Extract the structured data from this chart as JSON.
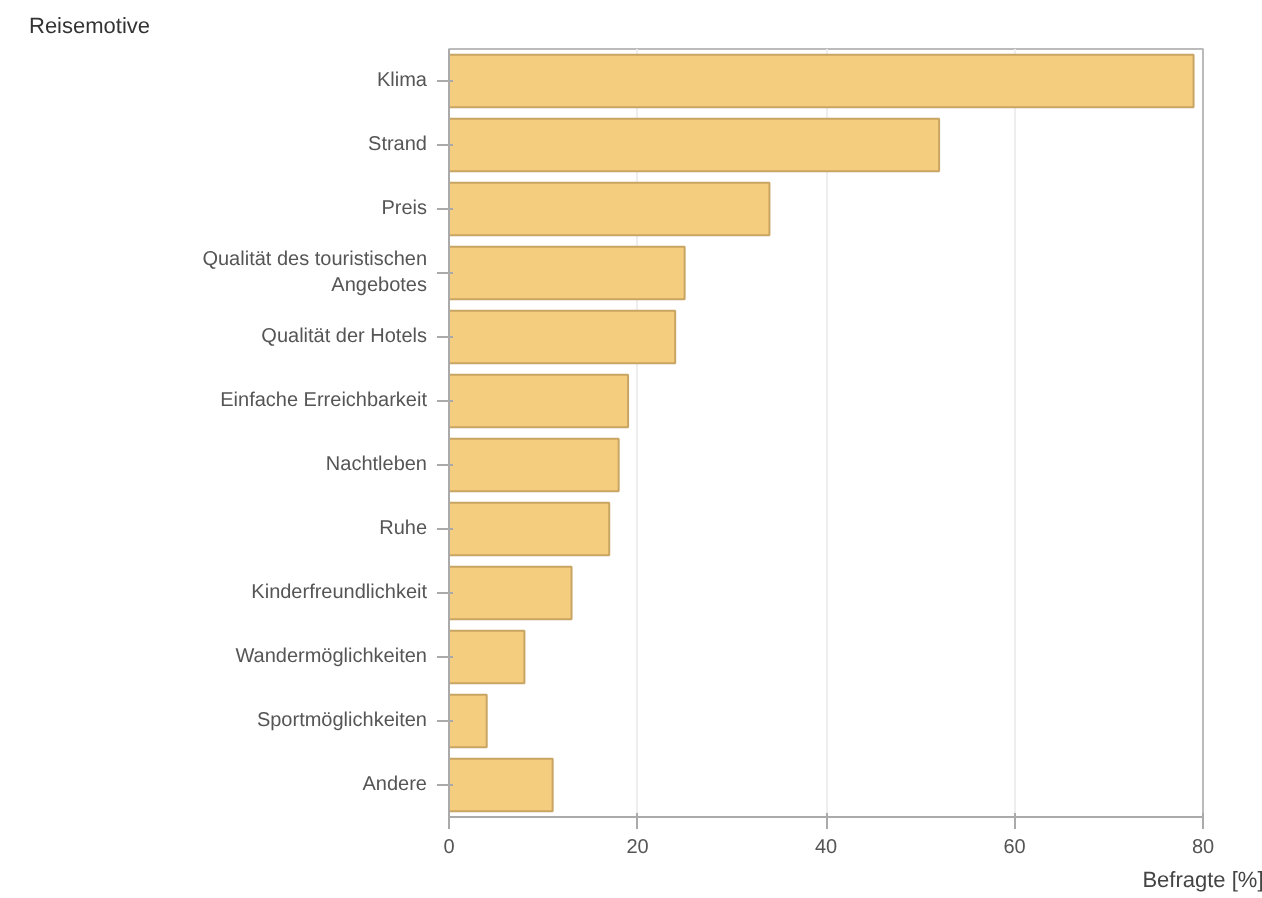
{
  "chart_data": {
    "type": "bar",
    "orientation": "horizontal",
    "title": "Reisemotive",
    "xlabel": "Befragte [%]",
    "categories": [
      "Klima",
      "Strand",
      "Preis",
      "Qualität des touristischen\nAngebotes",
      "Qualität der Hotels",
      "Einfache Erreichbarkeit",
      "Nachtleben",
      "Ruhe",
      "Kinderfreundlichkeit",
      "Wandermöglichkeiten",
      "Sportmöglichkeiten",
      "Andere"
    ],
    "values": [
      79,
      52,
      34,
      25,
      24,
      19,
      18,
      17,
      13,
      8,
      4,
      11
    ],
    "color": "#f5cd7e",
    "xlim": [
      0,
      80
    ],
    "xticks": [
      0,
      20,
      40,
      60,
      80
    ],
    "grid": "x"
  }
}
